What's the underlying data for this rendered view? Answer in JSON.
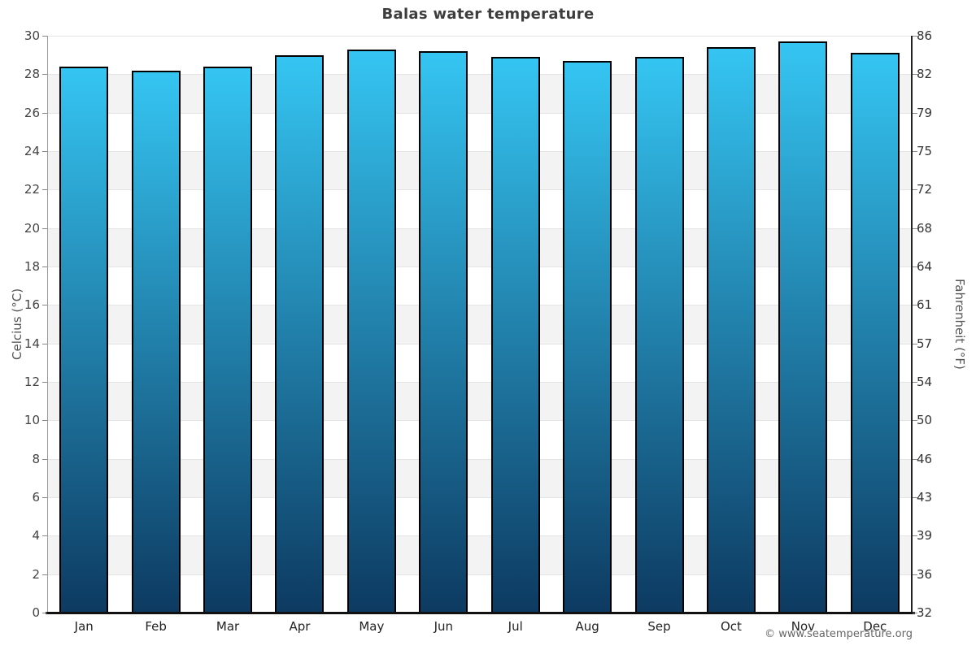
{
  "title": "Balas water temperature",
  "footer": {
    "copyright": "© www.seatemperature.org"
  },
  "chart_data": {
    "type": "bar",
    "title": "Balas water temperature",
    "xlabel": "",
    "ylabel_left": "Celcius (°C)",
    "ylabel_right": "Fahrenheit (°F)",
    "ylim": [
      0,
      30
    ],
    "grid": true,
    "legend": "none",
    "categories": [
      "Jan",
      "Feb",
      "Mar",
      "Apr",
      "May",
      "Jun",
      "Jul",
      "Aug",
      "Sep",
      "Oct",
      "Nov",
      "Dec"
    ],
    "values": [
      28.4,
      28.2,
      28.4,
      29.0,
      29.3,
      29.2,
      28.9,
      28.7,
      28.9,
      29.4,
      29.7,
      29.1
    ],
    "unit": "°C",
    "celsius_ticks": [
      30,
      28,
      26,
      24,
      22,
      20,
      18,
      16,
      14,
      12,
      10,
      8,
      6,
      4,
      2,
      0
    ],
    "fahrenheit_ticks": [
      86,
      82,
      79,
      75,
      72,
      68,
      64,
      61,
      57,
      54,
      50,
      46,
      43,
      39,
      36,
      32
    ],
    "colors": {
      "bar_top": "#35c5f2",
      "bar_bottom": "#0d3a61",
      "bar_border": "#000000",
      "band": "#f3f3f3",
      "gridline": "#e4e4e4",
      "axis_left": "#9a9a9a",
      "axis_right": "#222222",
      "axis_bottom": "#111111"
    }
  }
}
